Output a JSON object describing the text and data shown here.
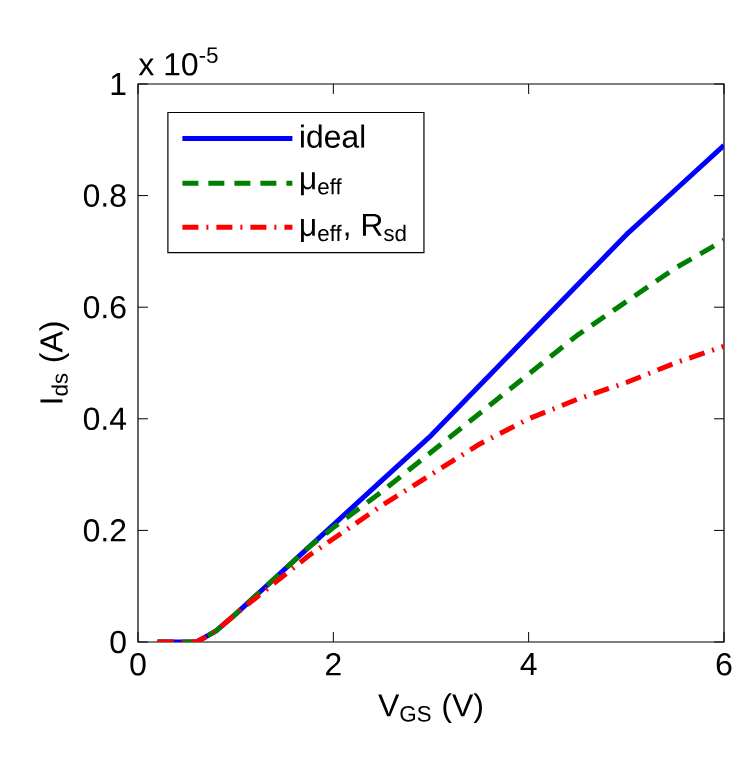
{
  "chart_data": {
    "type": "line",
    "xlabel": "V$_{GS}$ (V)",
    "ylabel": "I$_{ds}$ (A)",
    "annotations": [
      "x 10$^{-5}$"
    ],
    "x": [
      0.2,
      0.4,
      0.6,
      0.8,
      1,
      1.25,
      1.5,
      1.75,
      2,
      2.5,
      3,
      3.5,
      4,
      4.5,
      5,
      5.5,
      6
    ],
    "series": [
      {
        "name": "ideal",
        "color": "#0000ff",
        "line_style": "solid",
        "values": [
          0,
          0,
          0,
          0.02,
          0.05,
          0.09,
          0.13,
          0.17,
          0.21,
          0.29,
          0.37,
          0.46,
          0.55,
          0.64,
          0.73,
          0.81,
          0.89
        ]
      },
      {
        "name": "μ$_{eff}$",
        "color": "#008000",
        "line_style": "dashed",
        "values": [
          0,
          0,
          0,
          0.02,
          0.05,
          0.09,
          0.13,
          0.17,
          0.205,
          0.27,
          0.34,
          0.41,
          0.48,
          0.55,
          0.61,
          0.67,
          0.72
        ]
      },
      {
        "name": "μ$_{eff}$, R$_{sd}$",
        "color": "#ff0000",
        "line_style": "dashdot",
        "values": [
          0,
          0,
          0,
          0.02,
          0.05,
          0.085,
          0.12,
          0.155,
          0.185,
          0.245,
          0.3,
          0.355,
          0.4,
          0.435,
          0.465,
          0.5,
          0.53
        ]
      }
    ],
    "xlim": [
      0,
      6
    ],
    "xticks": [
      0,
      2,
      4,
      6
    ],
    "ylim": [
      0,
      1
    ],
    "yticks": [
      0,
      0.2,
      0.4,
      0.6,
      0.8,
      1
    ],
    "legend": "top left",
    "grid": false
  }
}
